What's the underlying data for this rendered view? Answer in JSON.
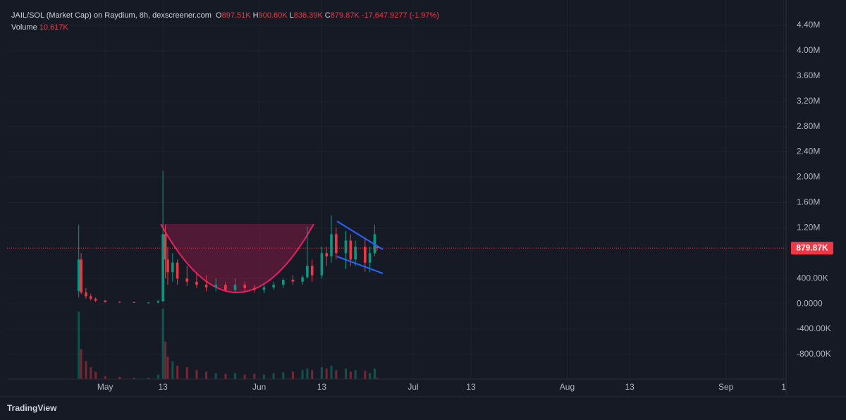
{
  "chart_data": {
    "type": "candlestick",
    "legend": {
      "symbol": "JAIL/SOL (Market Cap) on Raydium, 8h, dexscreener.com",
      "fields": [
        {
          "key": "O",
          "label": "897.51K"
        },
        {
          "key": "H",
          "label": "900.60K"
        },
        {
          "key": "L",
          "label": "836.39K"
        },
        {
          "key": "C",
          "label": "879.87K"
        }
      ],
      "change": "-17,647.9277 (-1.97%)",
      "volume_key": "Volume",
      "volume_label": "10.617K"
    },
    "x": [
      -5.5,
      -5,
      -4,
      -3,
      -2,
      0,
      3,
      6,
      9,
      11,
      12,
      12.5,
      13,
      14,
      15,
      17,
      19,
      21,
      23,
      25,
      27,
      29,
      31,
      33,
      35,
      37,
      39,
      41,
      42,
      43,
      45,
      46,
      47,
      48,
      50,
      51,
      52,
      54,
      55,
      56,
      56.5
    ],
    "open": [
      200000,
      700000,
      180000,
      120000,
      80000,
      50000,
      30000,
      25000,
      20000,
      20000,
      40000,
      1100000,
      700000,
      500000,
      650000,
      400000,
      350000,
      300000,
      260000,
      300000,
      220000,
      300000,
      250000,
      220000,
      260000,
      300000,
      380000,
      350000,
      420000,
      600000,
      450000,
      800000,
      750000,
      1100000,
      800000,
      1000000,
      700000,
      900000,
      650000,
      800000,
      897510
    ],
    "high": [
      1250000,
      800000,
      250000,
      160000,
      100000,
      60000,
      40000,
      35000,
      30000,
      60000,
      2100000,
      1250000,
      900000,
      800000,
      700000,
      600000,
      500000,
      450000,
      400000,
      350000,
      400000,
      350000,
      300000,
      300000,
      350000,
      400000,
      450000,
      450000,
      1220000,
      700000,
      900000,
      900000,
      1400000,
      1200000,
      1150000,
      1100000,
      1000000,
      1050000,
      900000,
      1250000,
      900600
    ],
    "low": [
      100000,
      150000,
      80000,
      50000,
      30000,
      20000,
      15000,
      15000,
      10000,
      10000,
      30000,
      400000,
      300000,
      350000,
      300000,
      280000,
      250000,
      200000,
      200000,
      180000,
      180000,
      200000,
      180000,
      170000,
      220000,
      250000,
      300000,
      300000,
      400000,
      350000,
      400000,
      600000,
      650000,
      700000,
      550000,
      600000,
      600000,
      500000,
      500000,
      750000,
      836390
    ],
    "close": [
      700000,
      180000,
      120000,
      80000,
      50000,
      30000,
      25000,
      20000,
      20000,
      40000,
      1100000,
      700000,
      500000,
      650000,
      400000,
      350000,
      300000,
      260000,
      300000,
      220000,
      300000,
      250000,
      220000,
      260000,
      300000,
      380000,
      350000,
      420000,
      600000,
      450000,
      800000,
      750000,
      1100000,
      800000,
      1000000,
      700000,
      900000,
      650000,
      800000,
      1100000,
      879870
    ],
    "volume": [
      450000,
      200000,
      120000,
      80000,
      50000,
      20000,
      15000,
      10000,
      10000,
      30000,
      470000,
      250000,
      150000,
      120000,
      90000,
      80000,
      60000,
      50000,
      40000,
      35000,
      40000,
      30000,
      35000,
      30000,
      40000,
      45000,
      50000,
      60000,
      70000,
      60000,
      80000,
      70000,
      90000,
      60000,
      70000,
      50000,
      60000,
      55000,
      40000,
      70000,
      10617
    ],
    "up_color": "#089981",
    "down_color": "#f23645",
    "last_price": {
      "value": 879870,
      "label": "879.87K"
    },
    "xlim": [
      -20.4,
      141.5
    ],
    "xticks": [
      {
        "value": 0,
        "label": "May"
      },
      {
        "value": 12,
        "label": "13"
      },
      {
        "value": 32,
        "label": "Jun"
      },
      {
        "value": 45,
        "label": "13"
      },
      {
        "value": 64,
        "label": "Jul"
      },
      {
        "value": 76,
        "label": "13"
      },
      {
        "value": 96,
        "label": "Aug"
      },
      {
        "value": 109,
        "label": "13"
      },
      {
        "value": 129,
        "label": "Sep"
      },
      {
        "value": 141,
        "label": "1"
      }
    ],
    "ylim": [
      -1190000,
      4800000
    ],
    "yticks": [
      {
        "value": -800000,
        "label": "-800.00K"
      },
      {
        "value": -400000,
        "label": "-400.00K"
      },
      {
        "value": 0,
        "label": "0.0000"
      },
      {
        "value": 400000,
        "label": "400.00K"
      },
      {
        "value": 1200000,
        "label": "1.20M"
      },
      {
        "value": 1600000,
        "label": "1.60M"
      },
      {
        "value": 2000000,
        "label": "2.00M"
      },
      {
        "value": 2400000,
        "label": "2.40M"
      },
      {
        "value": 2800000,
        "label": "2.80M"
      },
      {
        "value": 3200000,
        "label": "3.20M"
      },
      {
        "value": 3600000,
        "label": "3.60M"
      },
      {
        "value": 4000000,
        "label": "4.00M"
      },
      {
        "value": 4400000,
        "label": "4.40M"
      }
    ],
    "grid": true,
    "brand": "TradingView"
  }
}
